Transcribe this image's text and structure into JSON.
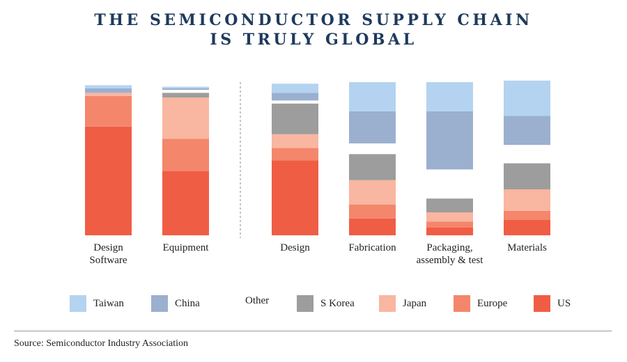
{
  "title_line1": "THE SEMICONDUCTOR SUPPLY CHAIN",
  "title_line2": "IS TRULY GLOBAL",
  "colors": {
    "Taiwan": "#b3d3f0",
    "China": "#9bb0cf",
    "S Korea": "#9d9d9d",
    "Japan": "#f9b6a0",
    "Europe": "#f4866b",
    "US": "#f05d45",
    "divider": "#888888"
  },
  "chart_data": {
    "type": "bar",
    "stacked": true,
    "title": "THE SEMICONDUCTOR SUPPLY CHAIN IS TRULY GLOBAL",
    "ylim": [
      0,
      100
    ],
    "ylabel": "",
    "xlabel": "",
    "stack_order": [
      "US",
      "Europe",
      "Japan",
      "S Korea",
      "Other",
      "China",
      "Taiwan"
    ],
    "categories": [
      {
        "label": [
          "Design",
          "Software"
        ],
        "group": "left",
        "values": {
          "US": 71,
          "Europe": 20,
          "Japan": 2,
          "S Korea": 0,
          "Other": 0,
          "China": 3,
          "Taiwan": 2
        }
      },
      {
        "label": [
          "Equipment"
        ],
        "group": "left",
        "values": {
          "US": 42,
          "Europe": 21,
          "Japan": 27,
          "S Korea": 3,
          "Other": 2,
          "China": 1,
          "Taiwan": 1
        }
      },
      {
        "label": [
          "Design"
        ],
        "group": "right",
        "values": {
          "US": 49,
          "Europe": 8,
          "Japan": 9,
          "S Korea": 20,
          "Other": 2,
          "China": 5,
          "Taiwan": 6
        }
      },
      {
        "label": [
          "Fabrication"
        ],
        "group": "right",
        "values": {
          "US": 11,
          "Europe": 9,
          "Japan": 16,
          "S Korea": 17,
          "Other": 7,
          "China": 21,
          "Taiwan": 19
        }
      },
      {
        "label": [
          "Packaging,",
          "assembly & test"
        ],
        "group": "right",
        "values": {
          "US": 5,
          "Europe": 4,
          "Japan": 6,
          "S Korea": 9,
          "Other": 19,
          "China": 38,
          "Taiwan": 19
        }
      },
      {
        "label": [
          "Materials"
        ],
        "group": "right",
        "values": {
          "US": 10,
          "Europe": 6,
          "Japan": 14,
          "S Korea": 17,
          "Other": 12,
          "China": 19,
          "Taiwan": 23
        }
      }
    ],
    "legend": [
      "Taiwan",
      "China",
      "Other",
      "S Korea",
      "Japan",
      "Europe",
      "US"
    ]
  },
  "source": "Source: Semiconductor Industry Association"
}
